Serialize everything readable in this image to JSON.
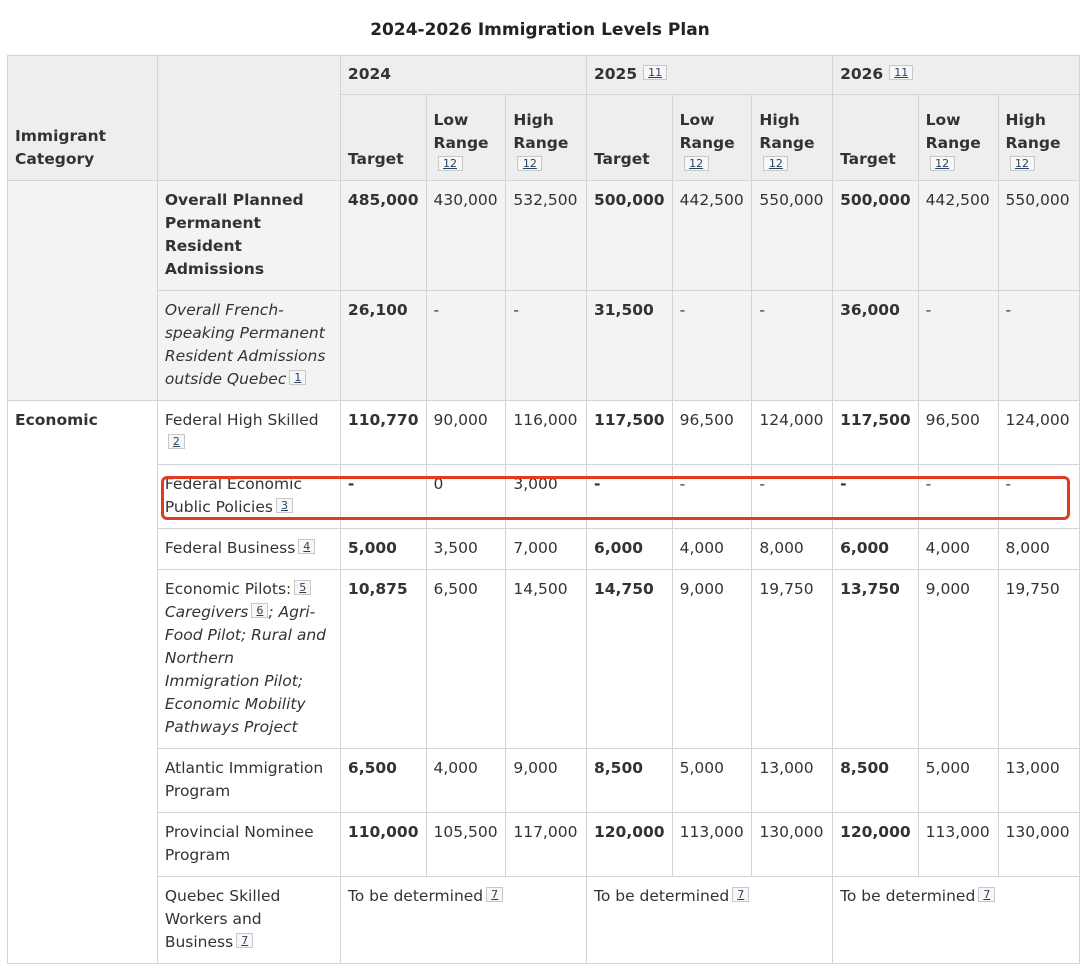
{
  "caption": "2024-2026 Immigration Levels Plan",
  "header": {
    "category_label": "Immigrant Category",
    "years": [
      {
        "year": "2024",
        "fn": ""
      },
      {
        "year": "2025",
        "fn": "11"
      },
      {
        "year": "2026",
        "fn": "11"
      }
    ],
    "target_label": "Target",
    "low_label": "Low Range",
    "high_label": "High Range",
    "range_fn": "12"
  },
  "overall": {
    "label": "Overall Planned Permanent Resident Admissions",
    "values": [
      "485,000",
      "430,000",
      "532,500",
      "500,000",
      "442,500",
      "550,000",
      "500,000",
      "442,500",
      "550,000"
    ]
  },
  "french": {
    "label": "Overall French-speaking Permanent Resident Admissions outside Quebec",
    "fn": "1",
    "values": [
      "26,100",
      "-",
      "-",
      "31,500",
      "-",
      "-",
      "36,000",
      "-",
      "-"
    ]
  },
  "economic": {
    "category": "Economic",
    "rows": [
      {
        "label": "Federal High Skilled",
        "fn": "2",
        "values": [
          "110,770",
          "90,000",
          "116,000",
          "117,500",
          "96,500",
          "124,000",
          "117,500",
          "96,500",
          "124,000"
        ]
      },
      {
        "label": "Federal Economic Public Policies",
        "fn": "3",
        "values": [
          "-",
          "0",
          "3,000",
          "-",
          "-",
          "-",
          "-",
          "-",
          "-"
        ]
      },
      {
        "label": "Federal Business",
        "fn": "4",
        "values": [
          "5,000",
          "3,500",
          "7,000",
          "6,000",
          "4,000",
          "8,000",
          "6,000",
          "4,000",
          "8,000"
        ]
      },
      {
        "label": "Economic Pilots:",
        "fn": "5",
        "label_italic_a": "Caregivers",
        "fn_b": "6",
        "label_italic_b": "; Agri-Food Pilot; Rural and Northern Immigration Pilot; Economic Mobility Pathways Project",
        "values": [
          "10,875",
          "6,500",
          "14,500",
          "14,750",
          "9,000",
          "19,750",
          "13,750",
          "9,000",
          "19,750"
        ]
      },
      {
        "label": "Atlantic Immigration Program",
        "fn": "",
        "values": [
          "6,500",
          "4,000",
          "9,000",
          "8,500",
          "5,000",
          "13,000",
          "8,500",
          "5,000",
          "13,000"
        ]
      },
      {
        "label": "Provincial Nominee Program",
        "fn": "",
        "values": [
          "110,000",
          "105,500",
          "117,000",
          "120,000",
          "113,000",
          "130,000",
          "120,000",
          "113,000",
          "130,000"
        ]
      }
    ],
    "quebec": {
      "label": "Quebec Skilled Workers and Business",
      "fn": "7",
      "tbd": "To be determined",
      "tbd_fn": "7"
    }
  },
  "highlight_color": "#e23b22"
}
